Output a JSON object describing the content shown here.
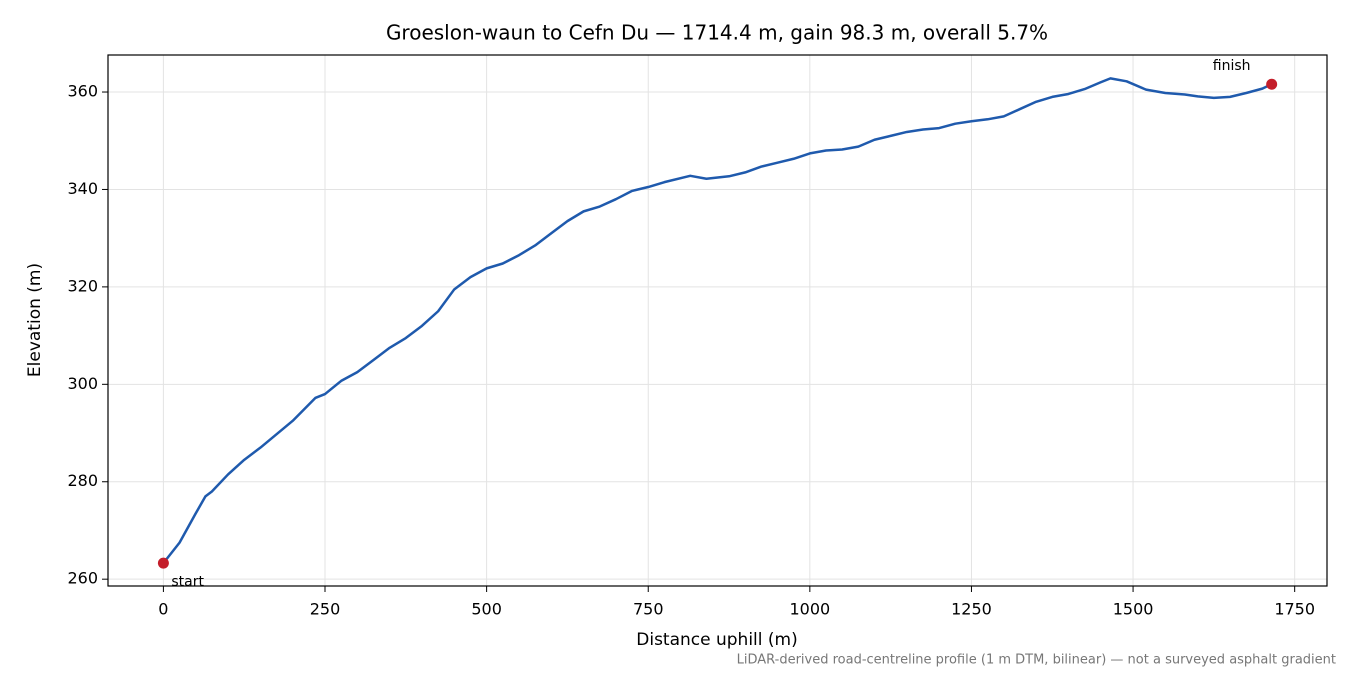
{
  "chart_data": {
    "type": "line",
    "title": "Groeslon-waun to Cefn Du — 1714.4 m, gain 98.3 m, overall 5.7%",
    "x_label": "Distance uphill (m)",
    "y_label": "Elevation (m)",
    "footnote": "LiDAR-derived road-centreline profile (1 m DTM, bilinear) — not a surveyed asphalt gradient",
    "xlim": [
      -85.7,
      1800
    ],
    "ylim": [
      258.6,
      367.6
    ],
    "xticks": [
      0,
      250,
      500,
      750,
      1000,
      1250,
      1500,
      1750
    ],
    "yticks": [
      260,
      280,
      300,
      320,
      340,
      360
    ],
    "grid": true,
    "x": [
      0,
      25,
      50,
      65,
      75,
      100,
      125,
      150,
      200,
      235,
      250,
      275,
      300,
      325,
      350,
      375,
      400,
      425,
      450,
      475,
      500,
      525,
      550,
      575,
      600,
      625,
      650,
      675,
      700,
      725,
      750,
      775,
      815,
      840,
      875,
      900,
      925,
      950,
      975,
      1000,
      1025,
      1050,
      1075,
      1100,
      1125,
      1150,
      1175,
      1200,
      1225,
      1250,
      1275,
      1300,
      1325,
      1350,
      1375,
      1400,
      1425,
      1450,
      1465,
      1490,
      1520,
      1550,
      1580,
      1600,
      1625,
      1650,
      1675,
      1700,
      1714.4
    ],
    "series": [
      {
        "color": "#1f5aad",
        "values": [
          263.3,
          267.5,
          273.5,
          277,
          278,
          281.5,
          284.5,
          287,
          292.5,
          297.2,
          298,
          300.7,
          302.5,
          305,
          307.5,
          309.5,
          312,
          315,
          319.5,
          322,
          323.8,
          324.8,
          326.5,
          328.5,
          331,
          333.5,
          335.5,
          336.5,
          338,
          339.7,
          340.5,
          341.5,
          342.8,
          342.2,
          342.7,
          343.5,
          344.7,
          345.5,
          346.3,
          347.4,
          348,
          348.2,
          348.8,
          350.2,
          351,
          351.8,
          352.3,
          352.6,
          353.5,
          354,
          354.4,
          355,
          356.5,
          358,
          359,
          359.6,
          360.6,
          362,
          362.8,
          362.2,
          360.5,
          359.8,
          359.5,
          359.1,
          358.8,
          359,
          359.8,
          360.7,
          361.6
        ]
      }
    ],
    "markers": {
      "color": "#c41e2a",
      "x": [
        0,
        1714.4
      ],
      "values": [
        263.3,
        361.6
      ],
      "labels": [
        "start",
        "finish"
      ]
    }
  }
}
